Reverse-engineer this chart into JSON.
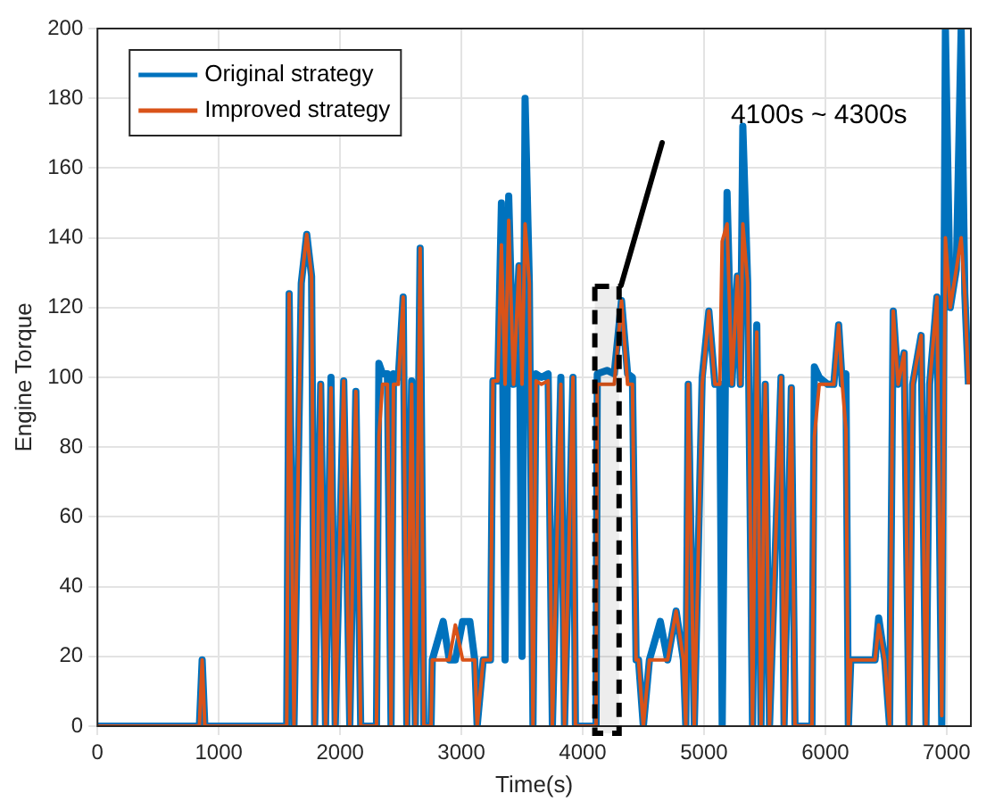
{
  "chart_data": {
    "type": "line",
    "xlabel": "Time(s)",
    "ylabel": "Engine Torque",
    "x": [
      0,
      840,
      863,
      885,
      1560,
      1580,
      1620,
      1680,
      1725,
      1765,
      1790,
      1840,
      1880,
      1925,
      1960,
      2030,
      2080,
      2130,
      2170,
      2300,
      2320,
      2350,
      2390,
      2420,
      2440,
      2480,
      2520,
      2550,
      2590,
      2620,
      2660,
      2690,
      2750,
      2760,
      2850,
      2900,
      2950,
      3010,
      3070,
      3110,
      3130,
      3180,
      3240,
      3260,
      3300,
      3330,
      3360,
      3390,
      3430,
      3475,
      3500,
      3525,
      3560,
      3590,
      3615,
      3660,
      3715,
      3750,
      3820,
      3850,
      3920,
      3940,
      4110,
      4120,
      4200,
      4260,
      4320,
      4370,
      4410,
      4440,
      4460,
      4500,
      4550,
      4640,
      4700,
      4770,
      4830,
      4850,
      4870,
      4920,
      4985,
      5040,
      5090,
      5130,
      5150,
      5190,
      5230,
      5275,
      5300,
      5320,
      5360,
      5400,
      5435,
      5470,
      5505,
      5540,
      5635,
      5660,
      5720,
      5750,
      5890,
      5910,
      5950,
      6020,
      6070,
      6110,
      6140,
      6170,
      6190,
      6210,
      6300,
      6410,
      6440,
      6490,
      6530,
      6560,
      6600,
      6650,
      6690,
      6720,
      6790,
      6830,
      6860,
      6920,
      6960,
      6990,
      7030,
      7080,
      7120,
      7150,
      7180
    ],
    "series": [
      {
        "name": "Original strategy",
        "color": "#0072bd",
        "values": [
          0,
          0,
          19,
          0,
          0,
          124,
          0,
          127,
          141,
          129,
          0,
          98,
          0,
          100,
          0,
          99,
          0,
          96,
          0,
          0,
          104,
          101,
          101,
          0,
          101,
          100,
          123,
          0,
          99,
          0,
          137,
          0,
          0,
          19,
          30,
          19,
          19,
          30,
          30,
          19,
          0,
          19,
          19,
          99,
          99,
          150,
          19,
          152,
          98,
          132,
          20,
          180,
          127,
          0,
          101,
          100,
          101,
          0,
          100,
          0,
          100,
          0,
          0,
          101,
          102,
          101,
          122,
          101,
          100,
          19,
          19,
          0,
          19,
          30,
          19,
          33,
          19,
          0,
          98,
          0,
          100,
          119,
          98,
          98,
          0,
          153,
          98,
          129,
          98,
          172,
          127,
          0,
          115,
          0,
          98,
          0,
          100,
          0,
          97,
          0,
          0,
          103,
          100,
          98,
          98,
          115,
          98,
          101,
          0,
          19,
          19,
          19,
          31,
          19,
          0,
          119,
          98,
          107,
          0,
          98,
          112,
          0,
          98,
          123,
          0,
          200,
          120,
          131,
          200,
          124,
          98
        ]
      },
      {
        "name": "Improved strategy",
        "color": "#d95319",
        "values": [
          0,
          0,
          19,
          0,
          0,
          124,
          0,
          127,
          141,
          129,
          0,
          98,
          0,
          97,
          0,
          99,
          0,
          96,
          0,
          0,
          83,
          98,
          98,
          0,
          98,
          98,
          123,
          0,
          98,
          0,
          137,
          0,
          0,
          19,
          19,
          19,
          29,
          19,
          19,
          19,
          0,
          19,
          19,
          99,
          99,
          138,
          98,
          145,
          98,
          132,
          98,
          144,
          127,
          0,
          99,
          98,
          99,
          0,
          98,
          0,
          100,
          0,
          0,
          98,
          98,
          98,
          122,
          98,
          98,
          19,
          19,
          0,
          19,
          19,
          19,
          33,
          19,
          0,
          98,
          0,
          98,
          119,
          98,
          98,
          139,
          144,
          98,
          129,
          98,
          144,
          127,
          0,
          113,
          0,
          98,
          0,
          100,
          0,
          97,
          0,
          0,
          83,
          98,
          98,
          98,
          115,
          98,
          85,
          0,
          19,
          19,
          19,
          29,
          19,
          0,
          119,
          98,
          107,
          0,
          98,
          112,
          0,
          98,
          123,
          3,
          140,
          120,
          131,
          140,
          124,
          98
        ]
      }
    ],
    "xlim": [
      0,
      7200
    ],
    "xticks": [
      0,
      1000,
      2000,
      3000,
      4000,
      5000,
      6000,
      7000
    ],
    "ylim": [
      0,
      200
    ],
    "yticks": [
      0,
      20,
      40,
      60,
      80,
      100,
      120,
      140,
      160,
      180,
      200
    ],
    "grid": true,
    "legend": "top left",
    "marker": "none",
    "line_style": "solid",
    "bands": [
      {
        "axis": "x",
        "from": 4100,
        "to": 4300
      }
    ],
    "annotations": [
      "4100s ~ 4300s"
    ]
  }
}
